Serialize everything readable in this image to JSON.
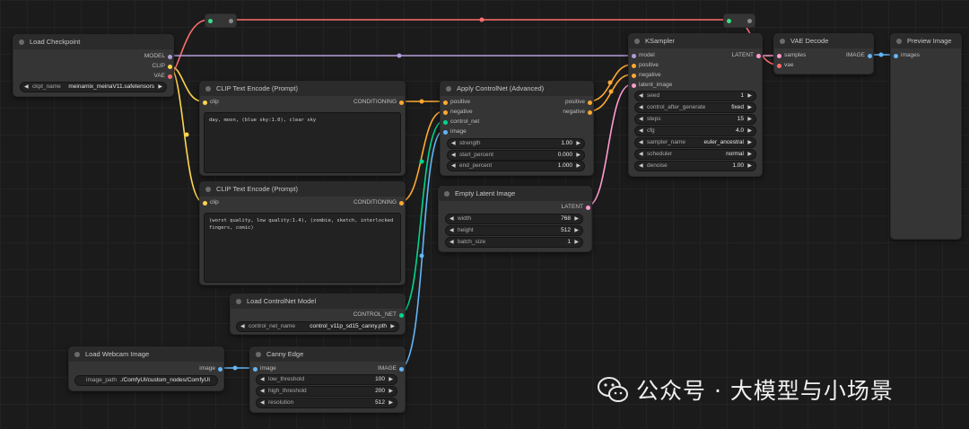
{
  "colors": {
    "model": "#b39ddb",
    "clip": "#ffd54f",
    "vae": "#ff6e6e",
    "conditioning": "#ffa931",
    "latent": "#ff9ccf",
    "image": "#64b5f6",
    "control_net": "#00d68f"
  },
  "nodes": {
    "load_checkpoint": {
      "title": "Load Checkpoint",
      "outputs": [
        "MODEL",
        "CLIP",
        "VAE"
      ],
      "widget": {
        "label": "ckpt_name",
        "value": "meinamix_meinaV11.safetensors"
      }
    },
    "clip_pos": {
      "title": "CLIP Text Encode (Prompt)",
      "input": "clip",
      "output": "CONDITIONING",
      "text": "day, moon, (blue sky:1.0), clear sky"
    },
    "clip_neg": {
      "title": "CLIP Text Encode (Prompt)",
      "input": "clip",
      "output": "CONDITIONING",
      "text": "(worst quality, low quality:1.4), (zombie, sketch, interlocked fingers, comic)"
    },
    "apply_controlnet": {
      "title": "Apply ControlNet (Advanced)",
      "inputs": [
        "positive",
        "negative",
        "control_net",
        "image"
      ],
      "outputs": [
        "positive",
        "negative"
      ],
      "widgets": [
        {
          "label": "strength",
          "value": "1.00"
        },
        {
          "label": "start_percent",
          "value": "0.000"
        },
        {
          "label": "end_percent",
          "value": "1.000"
        }
      ]
    },
    "empty_latent": {
      "title": "Empty Latent Image",
      "output": "LATENT",
      "widgets": [
        {
          "label": "width",
          "value": "768"
        },
        {
          "label": "height",
          "value": "512"
        },
        {
          "label": "batch_size",
          "value": "1"
        }
      ]
    },
    "ksampler": {
      "title": "KSampler",
      "inputs": [
        "model",
        "positive",
        "negative",
        "latent_image"
      ],
      "output": "LATENT",
      "widgets": [
        {
          "label": "seed",
          "value": "1"
        },
        {
          "label": "control_after_generate",
          "value": "fixed"
        },
        {
          "label": "steps",
          "value": "15"
        },
        {
          "label": "cfg",
          "value": "4.0"
        },
        {
          "label": "sampler_name",
          "value": "euler_ancestral"
        },
        {
          "label": "scheduler",
          "value": "normal"
        },
        {
          "label": "denoise",
          "value": "1.00"
        }
      ]
    },
    "vae_decode": {
      "title": "VAE Decode",
      "inputs": [
        "samples",
        "vae"
      ],
      "output": "IMAGE"
    },
    "preview_image": {
      "title": "Preview Image",
      "input": "images"
    },
    "load_controlnet": {
      "title": "Load ControlNet Model",
      "output": "CONTROL_NET",
      "widget": {
        "label": "control_net_name",
        "value": "control_v11p_sd15_canny.pth"
      }
    },
    "load_webcam": {
      "title": "Load Webcam Image",
      "output": "image",
      "widget": {
        "label": "image_path",
        "value": "./ComfyUI/custom_nodes/ComfyUI"
      }
    },
    "canny": {
      "title": "Canny Edge",
      "input": "image",
      "output": "IMAGE",
      "widgets": [
        {
          "label": "low_threshold",
          "value": "100"
        },
        {
          "label": "high_threshold",
          "value": "200"
        },
        {
          "label": "resolution",
          "value": "512"
        }
      ]
    }
  },
  "watermark": {
    "text": "公众号 · 大模型与小场景",
    "icon": "wechat-icon"
  }
}
